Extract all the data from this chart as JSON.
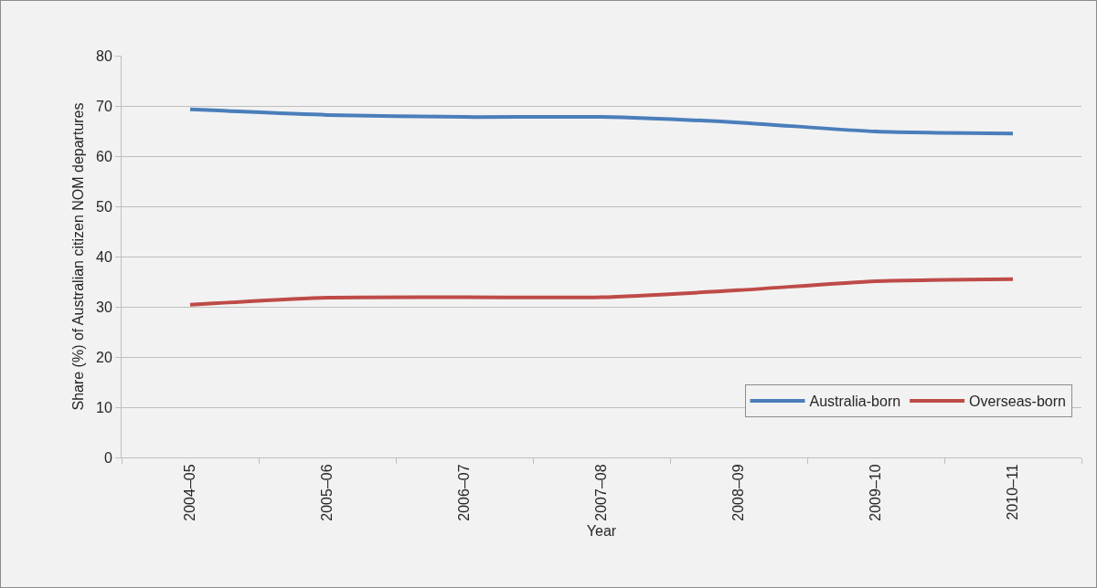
{
  "chart_data": {
    "type": "line",
    "xlabel": "Year",
    "ylabel": "Share (%) of Australian citizen NOM departures",
    "categories": [
      "2004–05",
      "2005–06",
      "2006–07",
      "2007–08",
      "2008–09",
      "2009–10",
      "2010–11"
    ],
    "series": [
      {
        "name": "Australia-born",
        "color": "#4a7ebb",
        "values": [
          69.3,
          68.2,
          67.8,
          67.8,
          66.7,
          64.9,
          64.5
        ]
      },
      {
        "name": "Overseas-born",
        "color": "#be4b48",
        "values": [
          30.4,
          31.8,
          31.9,
          31.9,
          33.3,
          35.1,
          35.5
        ]
      }
    ],
    "ylim": [
      0,
      80
    ],
    "yticks": [
      0,
      10,
      20,
      30,
      40,
      50,
      60,
      70,
      80
    ],
    "grid": "y",
    "legend": "bottom right",
    "marker": "none",
    "line_style": "solid"
  }
}
